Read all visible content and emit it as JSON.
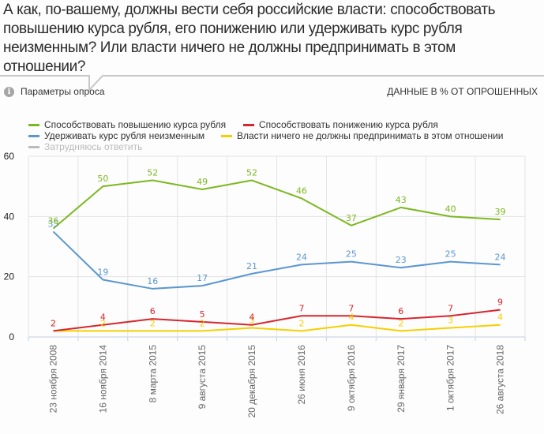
{
  "header": {
    "question": "А как, по-вашему, должны вести себя российские власти: способствовать повышению курса рубля, его понижению или удерживать курс рубля неизменным? Или власти ничего не должны предпринимать в этом отношении?",
    "params_label": "Параметры опроса",
    "params_icon": "info-icon",
    "units_label": "ДАННЫЕ В % ОТ ОПРОШЕННЫХ"
  },
  "legend": [
    {
      "name": "Способствовать повышению курса рубля",
      "color": "#7cb820",
      "enabled": true
    },
    {
      "name": "Способствовать понижению курса рубля",
      "color": "#d7262e",
      "enabled": true
    },
    {
      "name": "Удерживать курс рубля неизменным",
      "color": "#5b97cf",
      "enabled": true
    },
    {
      "name": "Власти ничего не должны предпринимать в этом отношении",
      "color": "#f5d000",
      "enabled": true
    },
    {
      "name": "Затрудняюсь ответить",
      "color": "#bbbbbb",
      "enabled": false
    }
  ],
  "chart_data": {
    "type": "line",
    "title": "",
    "xlabel": "",
    "ylabel": "",
    "ylim": [
      0,
      60
    ],
    "yticks": [
      0,
      20,
      40,
      60
    ],
    "grid": true,
    "legend_position": "top-left",
    "categories": [
      "23 ноября 2008",
      "16 ноября 2014",
      "8 марта 2015",
      "9 августа 2015",
      "20 декабря 2015",
      "26 июня 2016",
      "9 октября 2016",
      "29 января 2017",
      "1 октября 2017",
      "26 августа 2018"
    ],
    "series": [
      {
        "name": "Способствовать повышению курса рубля",
        "color": "#7cb820",
        "values": [
          36,
          50,
          52,
          49,
          52,
          46,
          37,
          43,
          40,
          39
        ]
      },
      {
        "name": "Удерживать курс рубля неизменным",
        "color": "#5b97cf",
        "values": [
          35,
          19,
          16,
          17,
          21,
          24,
          25,
          23,
          25,
          24
        ]
      },
      {
        "name": "Способствовать понижению курса рубля",
        "color": "#d7262e",
        "values": [
          2,
          4,
          6,
          5,
          4,
          7,
          7,
          6,
          7,
          9
        ]
      },
      {
        "name": "Власти ничего не должны предпринимать в этом отношении",
        "color": "#f5d000",
        "values": [
          2,
          2,
          2,
          2,
          3,
          2,
          4,
          2,
          3,
          4
        ]
      }
    ]
  }
}
